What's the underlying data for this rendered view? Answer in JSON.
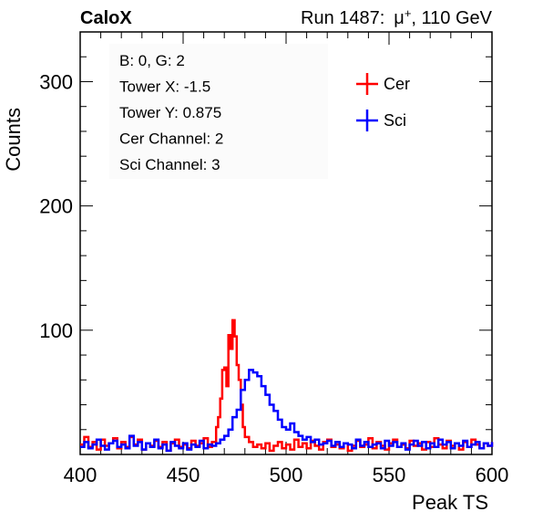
{
  "header": {
    "experiment": "CaloX",
    "run_prefix": "Run 1487:",
    "particle": "μ",
    "charge": "+",
    "energy": ", 110 GeV"
  },
  "info_box": {
    "lines": [
      "B: 0, G: 2",
      "Tower X: -1.5",
      "Tower Y: 0.875",
      "Cer Channel: 2",
      "Sci Channel: 3"
    ]
  },
  "chart_data": {
    "type": "line",
    "xlabel": "Peak TS",
    "ylabel": "Counts",
    "xlim": [
      400,
      600
    ],
    "ylim": [
      0,
      340
    ],
    "x_ticks": [
      400,
      450,
      500,
      550,
      600
    ],
    "y_ticks": [
      100,
      200,
      300
    ],
    "legend": {
      "placement": "top-right"
    },
    "series": [
      {
        "name": "Cer",
        "color": "#ff0000",
        "x": [
          400,
          402,
          404,
          406,
          408,
          410,
          412,
          414,
          416,
          418,
          420,
          422,
          424,
          426,
          428,
          430,
          432,
          434,
          436,
          438,
          440,
          442,
          444,
          446,
          448,
          450,
          452,
          454,
          456,
          458,
          460,
          462,
          464,
          466,
          467,
          468,
          469,
          470,
          471,
          472,
          473,
          474,
          475,
          476,
          477,
          478,
          479,
          480,
          482,
          484,
          486,
          488,
          490,
          492,
          494,
          496,
          498,
          500,
          502,
          504,
          506,
          508,
          510,
          512,
          514,
          516,
          518,
          520,
          522,
          524,
          526,
          528,
          530,
          532,
          534,
          536,
          538,
          540,
          542,
          544,
          546,
          548,
          550,
          552,
          554,
          556,
          558,
          560,
          562,
          564,
          566,
          568,
          570,
          572,
          574,
          576,
          578,
          580,
          582,
          584,
          586,
          588,
          590,
          592,
          594,
          596,
          598,
          600
        ],
        "y": [
          8,
          14,
          6,
          10,
          4,
          12,
          7,
          9,
          13,
          5,
          10,
          6,
          14,
          8,
          12,
          4,
          9,
          7,
          11,
          6,
          10,
          3,
          9,
          12,
          6,
          8,
          5,
          11,
          7,
          9,
          13,
          6,
          10,
          22,
          30,
          45,
          68,
          70,
          55,
          96,
          85,
          108,
          95,
          72,
          60,
          40,
          22,
          14,
          10,
          6,
          8,
          5,
          9,
          3,
          7,
          10,
          5,
          8,
          4,
          12,
          6,
          9,
          5,
          11,
          7,
          4,
          10,
          12,
          6,
          8,
          5,
          9,
          3,
          7,
          11,
          6,
          8,
          13,
          5,
          10,
          7,
          4,
          9,
          12,
          6,
          8,
          5,
          11,
          7,
          9,
          4,
          10,
          6,
          13,
          8,
          5,
          11,
          7,
          9,
          4,
          10,
          6,
          12,
          8,
          5,
          9,
          7,
          10
        ]
      },
      {
        "name": "Sci",
        "color": "#0000ff",
        "x": [
          400,
          402,
          404,
          406,
          408,
          410,
          412,
          414,
          416,
          418,
          420,
          422,
          424,
          426,
          428,
          430,
          432,
          434,
          436,
          438,
          440,
          442,
          444,
          446,
          448,
          450,
          452,
          454,
          456,
          458,
          460,
          462,
          464,
          466,
          468,
          470,
          472,
          474,
          476,
          478,
          480,
          482,
          484,
          486,
          488,
          490,
          492,
          494,
          496,
          498,
          500,
          502,
          504,
          506,
          508,
          510,
          512,
          514,
          516,
          518,
          520,
          522,
          524,
          526,
          528,
          530,
          532,
          534,
          536,
          538,
          540,
          542,
          544,
          546,
          548,
          550,
          552,
          554,
          556,
          558,
          560,
          562,
          564,
          566,
          568,
          570,
          572,
          574,
          576,
          578,
          580,
          582,
          584,
          586,
          588,
          590,
          592,
          594,
          596,
          598,
          600
        ],
        "y": [
          6,
          10,
          5,
          8,
          12,
          7,
          4,
          9,
          11,
          6,
          8,
          5,
          15,
          7,
          10,
          4,
          9,
          6,
          12,
          5,
          8,
          3,
          10,
          7,
          5,
          9,
          4,
          8,
          6,
          11,
          5,
          8,
          7,
          9,
          12,
          15,
          20,
          30,
          36,
          52,
          60,
          68,
          66,
          63,
          55,
          48,
          40,
          35,
          28,
          22,
          20,
          25,
          18,
          15,
          12,
          14,
          10,
          12,
          8,
          9,
          11,
          7,
          10,
          6,
          9,
          8,
          5,
          12,
          7,
          10,
          6,
          8,
          9,
          5,
          11,
          7,
          10,
          6,
          9,
          4,
          8,
          11,
          7,
          10,
          5,
          9,
          6,
          12,
          8,
          10,
          5,
          9,
          7,
          11,
          6,
          8,
          10,
          5,
          9,
          7,
          10
        ]
      }
    ]
  }
}
